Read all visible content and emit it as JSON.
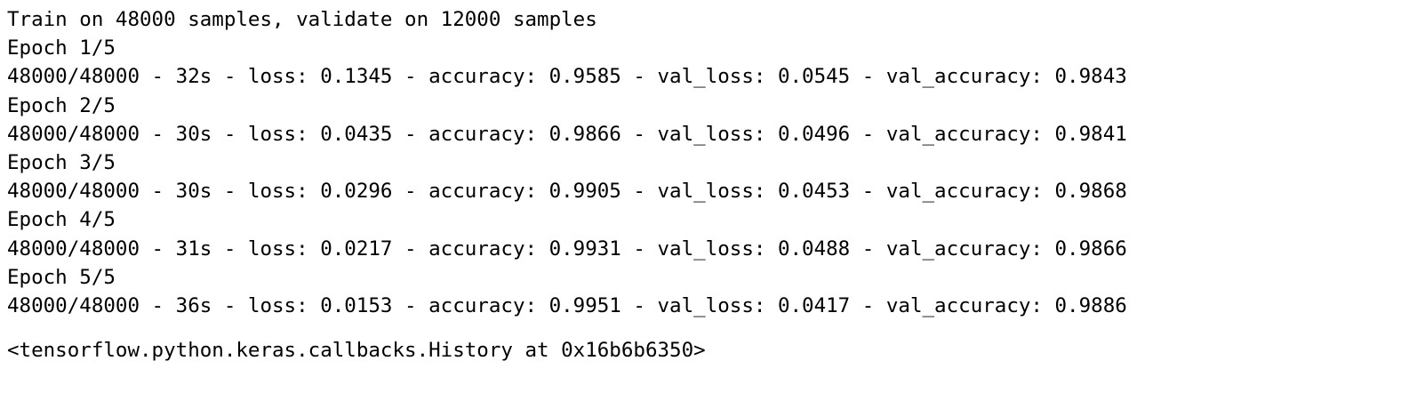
{
  "output": {
    "header": "Train on 48000 samples, validate on 12000 samples",
    "lines": [
      "Epoch 1/5",
      "48000/48000 - 32s - loss: 0.1345 - accuracy: 0.9585 - val_loss: 0.0545 - val_accuracy: 0.9843",
      "Epoch 2/5",
      "48000/48000 - 30s - loss: 0.0435 - accuracy: 0.9866 - val_loss: 0.0496 - val_accuracy: 0.9841",
      "Epoch 3/5",
      "48000/48000 - 30s - loss: 0.0296 - accuracy: 0.9905 - val_loss: 0.0453 - val_accuracy: 0.9868",
      "Epoch 4/5",
      "48000/48000 - 31s - loss: 0.0217 - accuracy: 0.9931 - val_loss: 0.0488 - val_accuracy: 0.9866",
      "Epoch 5/5",
      "48000/48000 - 36s - loss: 0.0153 - accuracy: 0.9951 - val_loss: 0.0417 - val_accuracy: 0.9886"
    ],
    "result": "<tensorflow.python.keras.callbacks.History at 0x16b6b6350>"
  }
}
